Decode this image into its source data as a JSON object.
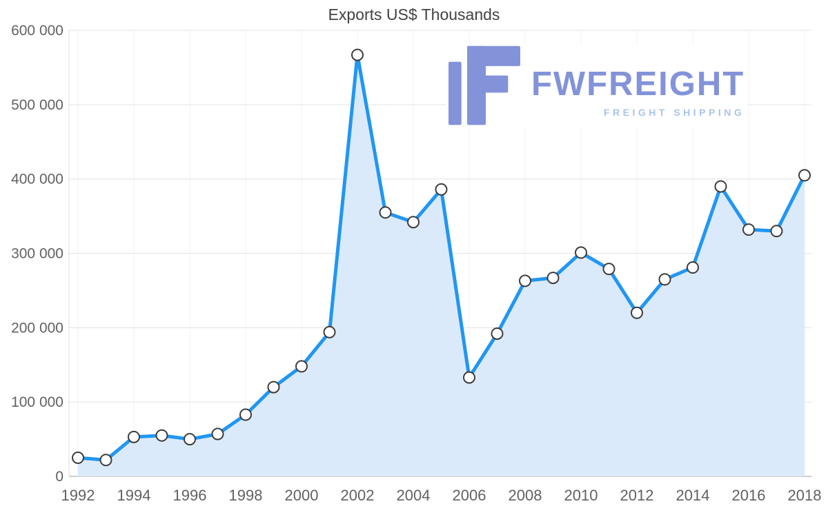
{
  "chart_data": {
    "type": "area",
    "title": "Exports US$ Thousands",
    "xlabel": "",
    "ylabel": "",
    "x": [
      1992,
      1993,
      1994,
      1995,
      1996,
      1997,
      1998,
      1999,
      2000,
      2001,
      2002,
      2003,
      2004,
      2005,
      2006,
      2007,
      2008,
      2009,
      2010,
      2011,
      2012,
      2013,
      2014,
      2015,
      2016,
      2017,
      2018
    ],
    "values": [
      25000,
      22000,
      53000,
      55000,
      50000,
      57000,
      83000,
      120000,
      148000,
      194000,
      567000,
      355000,
      342000,
      386000,
      133000,
      192000,
      263000,
      267000,
      301000,
      279000,
      220000,
      265000,
      281000,
      390000,
      332000,
      330000,
      405000
    ],
    "ylim": [
      0,
      600000
    ],
    "yticks": [
      0,
      100000,
      200000,
      300000,
      400000,
      500000,
      600000
    ],
    "ytick_labels": [
      "0",
      "100 000",
      "200 000",
      "300 000",
      "400 000",
      "500 000",
      "600 000"
    ],
    "xticks": [
      1992,
      1994,
      1996,
      1998,
      2000,
      2002,
      2004,
      2006,
      2008,
      2010,
      2012,
      2014,
      2016,
      2018
    ],
    "grid": "on",
    "legend": "none",
    "colors": {
      "line": "#2196f3",
      "area": "#dbeafa",
      "marker_fill": "#ffffff",
      "marker_stroke": "#3c3c3c",
      "grid_line": "#e3e3e3",
      "grid_line_vertical": "#f0f0f0",
      "axis_line": "#9e9e9e",
      "left_axis_line": "#dcdcdc",
      "tick_text": "#616161",
      "title_text": "#424242"
    }
  },
  "logo": {
    "title": "FWFREIGHT",
    "subtitle": "FREIGHT SHIPPING",
    "colors": {
      "mark": "#8393d9",
      "title": "#8393d9",
      "subtitle": "#a9c4ea"
    }
  }
}
